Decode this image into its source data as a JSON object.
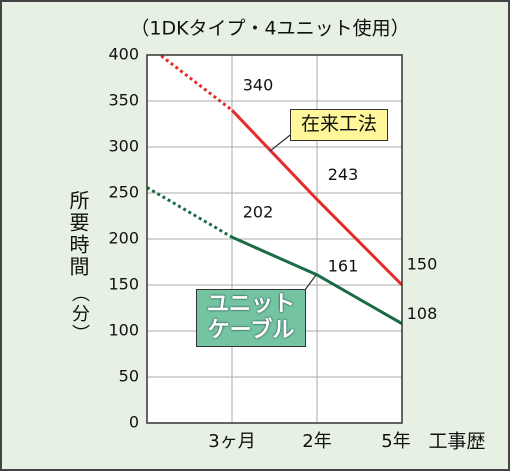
{
  "chart_data": {
    "type": "line",
    "title": "（1DKタイプ・4ユニット使用）",
    "y_label": "所要時間",
    "y_unit": "（分）",
    "x_label": "工事歴",
    "categories": [
      null,
      "3ヶ月",
      "2年",
      "5年"
    ],
    "series": [
      {
        "name": "在来工法",
        "color": "#e52b2b",
        "values": [
          411,
          340,
          243,
          150
        ]
      },
      {
        "name": "ユニットケーブル",
        "color": "#1b6b45",
        "values": [
          256,
          202,
          161,
          108
        ]
      }
    ],
    "dotted_segments": [
      0
    ],
    "ylim": [
      0,
      400
    ],
    "yticks": [
      0,
      50,
      100,
      150,
      200,
      250,
      300,
      350,
      400
    ],
    "grid": true
  }
}
